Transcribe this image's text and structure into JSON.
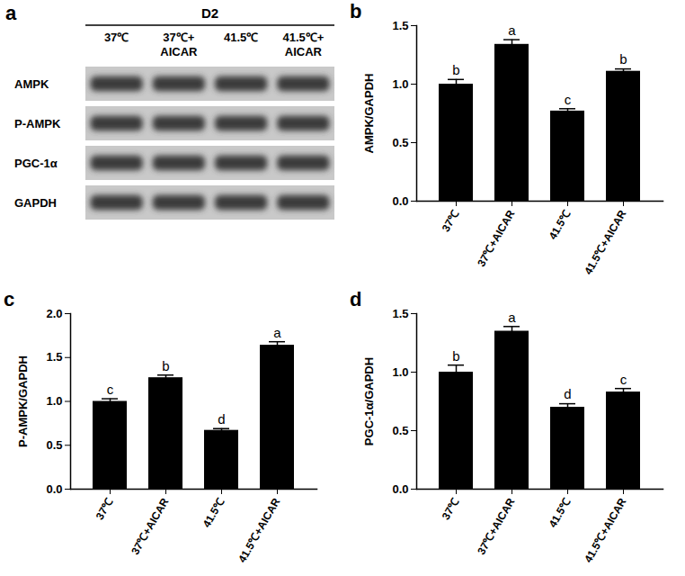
{
  "blot": {
    "panel": "a",
    "header": "D2",
    "columns": [
      "37℃",
      "37℃+ AICAR",
      "41.5℃",
      "41.5℃+ AICAR"
    ],
    "rows": [
      "AMPK",
      "P-AMPK",
      "PGC-1α",
      "GAPDH"
    ]
  },
  "chart_data": [
    {
      "panel": "b",
      "type": "bar",
      "y_label": "AMPK/GAPDH",
      "categories": [
        "37℃",
        "37℃+AICAR",
        "41.5℃",
        "41.5℃+AICAR"
      ],
      "values": [
        1.0,
        1.34,
        0.77,
        1.11
      ],
      "errors": [
        0.04,
        0.04,
        0.02,
        0.02
      ],
      "bar_labels": [
        "b",
        "a",
        "c",
        "b"
      ],
      "color": "#000000",
      "ylim": [
        0,
        1.5
      ],
      "yticks": [
        {
          "value": 0,
          "label": "0.0"
        },
        {
          "value": 0.5,
          "label": "0.5"
        },
        {
          "value": 1,
          "label": "1.0"
        },
        {
          "value": 1.5,
          "label": "1.5"
        }
      ]
    },
    {
      "panel": "c",
      "type": "bar",
      "y_label": "P-AMPK/GAPDH",
      "categories": [
        "37℃",
        "37℃+AICAR",
        "41.5℃",
        "41.5℃+AICAR"
      ],
      "values": [
        1.0,
        1.27,
        0.67,
        1.64
      ],
      "errors": [
        0.03,
        0.03,
        0.02,
        0.04
      ],
      "bar_labels": [
        "c",
        "b",
        "d",
        "a"
      ],
      "color": "#000000",
      "ylim": [
        0,
        2
      ],
      "yticks": [
        {
          "value": 0,
          "label": "0.0"
        },
        {
          "value": 0.5,
          "label": "0.5"
        },
        {
          "value": 1,
          "label": "1.0"
        },
        {
          "value": 1.5,
          "label": "1.5"
        },
        {
          "value": 2,
          "label": "2.0"
        }
      ]
    },
    {
      "panel": "d",
      "type": "bar",
      "y_label": "PGC-1α/GAPDH",
      "categories": [
        "37℃",
        "37℃+AICAR",
        "41.5℃",
        "41.5℃+AICAR"
      ],
      "values": [
        1.0,
        1.35,
        0.7,
        0.83
      ],
      "errors": [
        0.06,
        0.04,
        0.03,
        0.03
      ],
      "bar_labels": [
        "b",
        "a",
        "d",
        "c"
      ],
      "color": "#000000",
      "ylim": [
        0,
        1.5
      ],
      "yticks": [
        {
          "value": 0,
          "label": "0.0"
        },
        {
          "value": 0.5,
          "label": "0.5"
        },
        {
          "value": 1,
          "label": "1.0"
        },
        {
          "value": 1.5,
          "label": "1.5"
        }
      ]
    }
  ]
}
